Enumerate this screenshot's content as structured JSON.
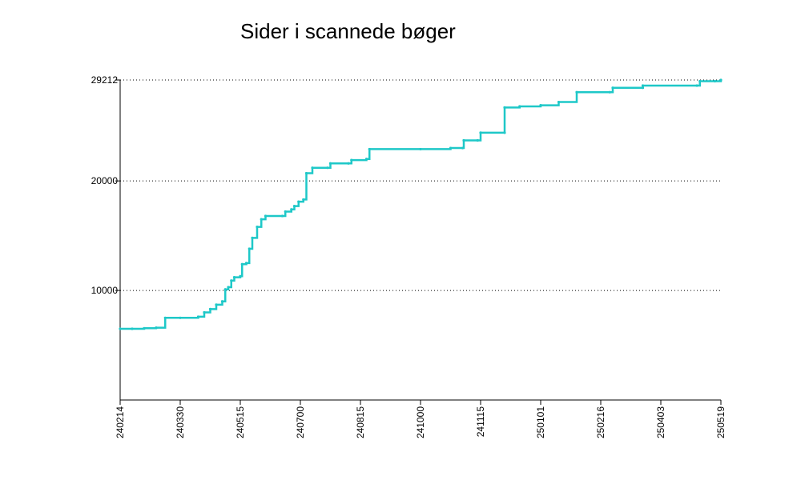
{
  "chart_data": {
    "type": "line",
    "title": "Sider i scannede bøger",
    "xlabel": "",
    "ylabel": "",
    "x_tick_labels": [
      "240214",
      "240330",
      "240515",
      "240700",
      "240815",
      "241000",
      "241115",
      "250101",
      "250216",
      "250403",
      "250519"
    ],
    "y_tick_labels": [
      "10000",
      "20000",
      "29212"
    ],
    "y_ticks": [
      10000,
      20000,
      29212
    ],
    "ylim": [
      0,
      29212
    ],
    "grid": "horizontal dotted",
    "legend": "none",
    "colors": {
      "line": "#1ec8c8",
      "axis": "#000000",
      "grid": "#000000"
    },
    "series": [
      {
        "values": [
          [
            0.0,
            6500
          ],
          [
            0.02,
            6500
          ],
          [
            0.04,
            6550
          ],
          [
            0.06,
            6600
          ],
          [
            0.075,
            7500
          ],
          [
            0.1,
            7500
          ],
          [
            0.13,
            7600
          ],
          [
            0.14,
            8000
          ],
          [
            0.15,
            8300
          ],
          [
            0.16,
            8700
          ],
          [
            0.17,
            9000
          ],
          [
            0.175,
            10100
          ],
          [
            0.18,
            10300
          ],
          [
            0.185,
            10900
          ],
          [
            0.19,
            11200
          ],
          [
            0.2,
            11300
          ],
          [
            0.203,
            12400
          ],
          [
            0.21,
            12500
          ],
          [
            0.215,
            13800
          ],
          [
            0.22,
            14800
          ],
          [
            0.228,
            15800
          ],
          [
            0.235,
            16500
          ],
          [
            0.242,
            16800
          ],
          [
            0.27,
            16800
          ],
          [
            0.275,
            17200
          ],
          [
            0.285,
            17400
          ],
          [
            0.29,
            17700
          ],
          [
            0.297,
            18100
          ],
          [
            0.305,
            18300
          ],
          [
            0.31,
            20700
          ],
          [
            0.32,
            21200
          ],
          [
            0.345,
            21200
          ],
          [
            0.35,
            21600
          ],
          [
            0.38,
            21600
          ],
          [
            0.385,
            21900
          ],
          [
            0.41,
            22000
          ],
          [
            0.415,
            22900
          ],
          [
            0.5,
            22900
          ],
          [
            0.55,
            23000
          ],
          [
            0.57,
            23000
          ],
          [
            0.572,
            23700
          ],
          [
            0.595,
            23700
          ],
          [
            0.6,
            24400
          ],
          [
            0.64,
            24400
          ],
          [
            0.64,
            26700
          ],
          [
            0.665,
            26800
          ],
          [
            0.7,
            26900
          ],
          [
            0.73,
            27200
          ],
          [
            0.76,
            28100
          ],
          [
            0.815,
            28100
          ],
          [
            0.82,
            28500
          ],
          [
            0.87,
            28500
          ],
          [
            0.87,
            28700
          ],
          [
            0.96,
            28700
          ],
          [
            0.965,
            29100
          ],
          [
            0.99,
            29100
          ],
          [
            1.0,
            29212
          ]
        ]
      }
    ]
  }
}
